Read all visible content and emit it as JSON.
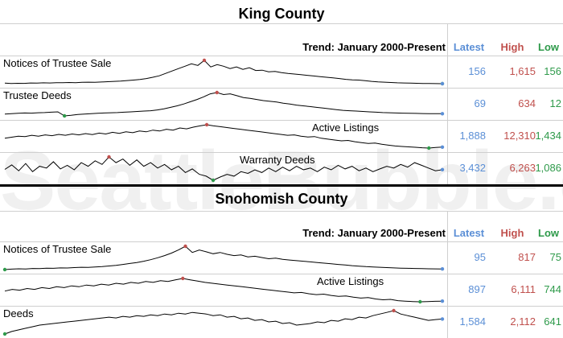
{
  "watermark": "SeattleBubble.com",
  "colors": {
    "latest": "#5b8fd6",
    "high": "#c0504d",
    "low": "#2e9a4a",
    "line": "#000000"
  },
  "header": {
    "trend": "Trend: January 2000-Present",
    "latest": "Latest",
    "high": "High",
    "low": "Low"
  },
  "chart_data": [
    {
      "type": "line",
      "title": "King County",
      "rows": [
        {
          "label": "Notices of Trustee Sale",
          "latest": "156",
          "high": "1,615",
          "low": "156",
          "values": [
            190,
            170,
            180,
            175,
            200,
            190,
            210,
            200,
            220,
            215,
            230,
            220,
            240,
            250,
            245,
            260,
            280,
            300,
            320,
            350,
            380,
            420,
            480,
            560,
            650,
            800,
            950,
            1100,
            1250,
            1400,
            1300,
            1615,
            1200,
            1350,
            1250,
            1100,
            1200,
            1050,
            1150,
            980,
            1000,
            900,
            920,
            850,
            800,
            760,
            720,
            680,
            640,
            600,
            560,
            520,
            480,
            430,
            400,
            380,
            340,
            300,
            270,
            250,
            230,
            210,
            200,
            190,
            180,
            170,
            165,
            160,
            156
          ]
        },
        {
          "label": "Trustee Deeds",
          "latest": "69",
          "high": "634",
          "low": "12",
          "values": [
            60,
            70,
            80,
            90,
            85,
            95,
            100,
            110,
            120,
            12,
            30,
            50,
            60,
            70,
            80,
            90,
            95,
            100,
            110,
            120,
            130,
            140,
            150,
            170,
            200,
            240,
            280,
            330,
            390,
            450,
            520,
            600,
            634,
            580,
            600,
            550,
            500,
            480,
            450,
            420,
            400,
            380,
            350,
            330,
            300,
            280,
            260,
            240,
            220,
            200,
            180,
            160,
            150,
            140,
            130,
            120,
            110,
            100,
            95,
            90,
            85,
            80,
            78,
            75,
            72,
            70,
            69
          ]
        },
        {
          "label": "Active Listings",
          "latest": "1,888",
          "high": "12,310",
          "low": "1,434",
          "values": [
            6000,
            6500,
            7000,
            6800,
            7400,
            7000,
            7600,
            7200,
            7800,
            7400,
            8000,
            7600,
            8200,
            7700,
            8400,
            8000,
            8800,
            8300,
            9000,
            8600,
            9400,
            9000,
            9800,
            9400,
            10200,
            9800,
            10800,
            10400,
            11200,
            11800,
            12310,
            11800,
            11400,
            11000,
            10600,
            10200,
            9800,
            9400,
            9000,
            8600,
            8200,
            7800,
            7400,
            7600,
            7000,
            6600,
            6800,
            6000,
            5600,
            5200,
            4800,
            5000,
            4400,
            4000,
            3600,
            3800,
            3200,
            2800,
            2400,
            2200,
            2000,
            1800,
            1600,
            1434,
            1700,
            1888
          ]
        },
        {
          "label": "Warranty Deeds",
          "latest": "3,432",
          "high": "6,263",
          "low": "1,086",
          "values": [
            3500,
            4500,
            3200,
            4800,
            3000,
            4200,
            3800,
            5200,
            3600,
            4400,
            3400,
            5000,
            4200,
            5400,
            4600,
            6263,
            5000,
            5800,
            4400,
            5600,
            4200,
            5000,
            3800,
            4600,
            3400,
            4200,
            2800,
            3600,
            2400,
            2000,
            1086,
            1800,
            2400,
            2000,
            3000,
            2600,
            3400,
            2800,
            3800,
            3000,
            4000,
            3200,
            4200,
            3400,
            3800,
            3000,
            4000,
            3400,
            4400,
            3600,
            4200,
            3200,
            3800,
            3000,
            3600,
            4200,
            3800,
            4600,
            4000,
            5000,
            4400,
            3800,
            3200,
            3432
          ]
        }
      ]
    },
    {
      "type": "line",
      "title": "Snohomish County",
      "rows": [
        {
          "label": "Notices of Trustee Sale",
          "latest": "95",
          "high": "817",
          "low": "75",
          "values": [
            75,
            90,
            100,
            95,
            110,
            105,
            120,
            115,
            130,
            125,
            140,
            150,
            145,
            160,
            170,
            190,
            210,
            240,
            270,
            300,
            340,
            390,
            450,
            520,
            600,
            700,
            817,
            620,
            700,
            640,
            580,
            620,
            560,
            520,
            540,
            480,
            500,
            460,
            420,
            440,
            400,
            380,
            360,
            340,
            320,
            300,
            280,
            260,
            240,
            220,
            200,
            185,
            170,
            160,
            150,
            140,
            130,
            120,
            115,
            110,
            105,
            100,
            98,
            95
          ]
        },
        {
          "label": "Active Listings",
          "latest": "897",
          "high": "6,111",
          "low": "744",
          "values": [
            3200,
            3600,
            3400,
            3800,
            3600,
            4000,
            3800,
            4200,
            4000,
            4400,
            4200,
            4600,
            4400,
            4800,
            4600,
            5000,
            4800,
            5200,
            5000,
            5400,
            5200,
            5600,
            5400,
            5800,
            6111,
            5800,
            5500,
            5200,
            5000,
            4800,
            4600,
            4400,
            4200,
            4000,
            3800,
            3600,
            3400,
            3200,
            3000,
            2800,
            2900,
            2600,
            2400,
            2500,
            2200,
            2000,
            2100,
            1800,
            1600,
            1700,
            1400,
            1200,
            1300,
            1000,
            900,
            800,
            744,
            800,
            850,
            897
          ]
        },
        {
          "label": "Deeds",
          "latest": "1,584",
          "high": "2,112",
          "low": "641",
          "values": [
            641,
            800,
            900,
            1000,
            1100,
            1200,
            1250,
            1300,
            1350,
            1400,
            1450,
            1500,
            1550,
            1600,
            1650,
            1700,
            1650,
            1750,
            1700,
            1800,
            1750,
            1850,
            1800,
            1900,
            1850,
            1950,
            1900,
            2000,
            1950,
            1900,
            1800,
            1850,
            1700,
            1750,
            1600,
            1650,
            1500,
            1550,
            1400,
            1450,
            1300,
            1350,
            1200,
            1250,
            1300,
            1400,
            1350,
            1500,
            1450,
            1600,
            1550,
            1700,
            1650,
            1800,
            1900,
            2000,
            2112,
            1900,
            1800,
            1700,
            1600,
            1500,
            1550,
            1584
          ]
        }
      ]
    }
  ]
}
